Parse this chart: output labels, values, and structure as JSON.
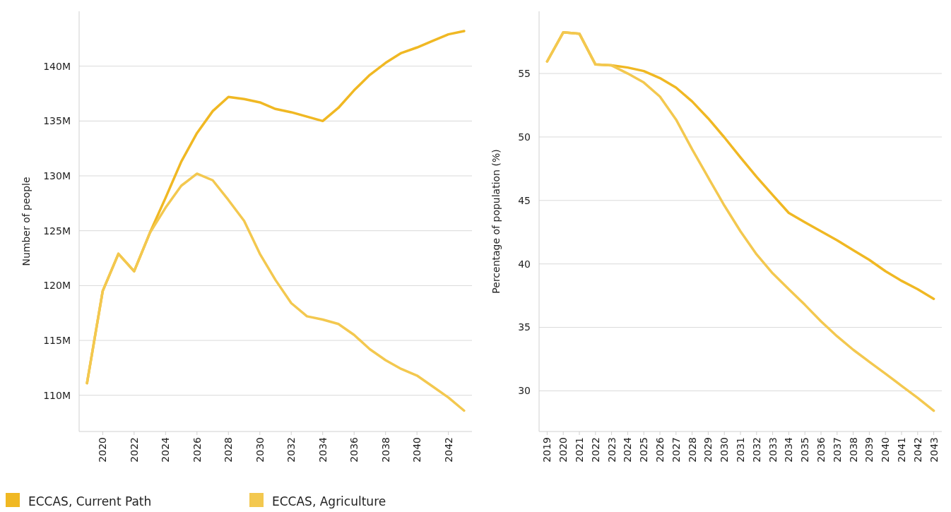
{
  "chart_data": [
    {
      "type": "line",
      "ylabel": "Number of people",
      "x": [
        2019,
        2020,
        2021,
        2022,
        2023,
        2024,
        2025,
        2026,
        2027,
        2028,
        2029,
        2030,
        2031,
        2032,
        2033,
        2034,
        2035,
        2036,
        2037,
        2038,
        2039,
        2040,
        2041,
        2042,
        2043
      ],
      "xlim": [
        2018.5,
        2043.5
      ],
      "xticks": [
        2020,
        2022,
        2024,
        2026,
        2028,
        2030,
        2032,
        2034,
        2036,
        2038,
        2040,
        2042
      ],
      "ylim": [
        106.7,
        145
      ],
      "yticks": [
        {
          "value": 110,
          "label": "110M"
        },
        {
          "value": 115,
          "label": "115M"
        },
        {
          "value": 120,
          "label": "120M"
        },
        {
          "value": 125,
          "label": "125M"
        },
        {
          "value": 130,
          "label": "130M"
        },
        {
          "value": 135,
          "label": "135M"
        },
        {
          "value": 140,
          "label": "140M"
        }
      ],
      "grid": "y",
      "legend": "bottom",
      "marker": "none",
      "line_style": "solid",
      "series": [
        {
          "name": "ECCAS, Current Path",
          "color": "#f0b823",
          "values": [
            111.1,
            119.5,
            122.9,
            121.3,
            124.8,
            128.0,
            131.3,
            133.9,
            135.9,
            137.2,
            137.0,
            136.7,
            136.1,
            135.8,
            135.4,
            135.0,
            136.2,
            137.8,
            139.2,
            140.3,
            141.2,
            141.7,
            142.3,
            142.9,
            143.2
          ]
        },
        {
          "name": "ECCAS, Agriculture",
          "color": "#f3c84f",
          "values": [
            111.1,
            119.5,
            122.9,
            121.3,
            124.8,
            127.1,
            129.1,
            130.2,
            129.6,
            127.8,
            125.9,
            122.9,
            120.5,
            118.4,
            117.2,
            116.9,
            116.5,
            115.5,
            114.2,
            113.2,
            112.4,
            111.8,
            110.8,
            109.8,
            108.6
          ]
        }
      ]
    },
    {
      "type": "line",
      "ylabel": "Percentage of population (%)",
      "x": [
        2019,
        2020,
        2021,
        2022,
        2023,
        2024,
        2025,
        2026,
        2027,
        2028,
        2029,
        2030,
        2031,
        2032,
        2033,
        2034,
        2035,
        2036,
        2037,
        2038,
        2039,
        2040,
        2041,
        2042,
        2043
      ],
      "xlim": [
        2018.5,
        2043.5
      ],
      "xticks": [
        2019,
        2020,
        2021,
        2022,
        2023,
        2024,
        2025,
        2026,
        2027,
        2028,
        2029,
        2030,
        2031,
        2032,
        2033,
        2034,
        2035,
        2036,
        2037,
        2038,
        2039,
        2040,
        2041,
        2042,
        2043
      ],
      "ylim": [
        26.8,
        59.9
      ],
      "yticks": [
        30,
        35,
        40,
        45,
        50,
        55
      ],
      "grid": "y",
      "marker": "none",
      "line_style": "solid",
      "series": [
        {
          "color": "#f0b823",
          "values": [
            55.95,
            58.24,
            58.14,
            55.71,
            55.64,
            55.47,
            55.19,
            54.64,
            53.89,
            52.8,
            51.46,
            49.97,
            48.39,
            46.86,
            45.43,
            44.02,
            43.28,
            42.57,
            41.86,
            41.08,
            40.32,
            39.43,
            38.67,
            38.01,
            37.25
          ]
        },
        {
          "color": "#f3c84f",
          "values": [
            55.95,
            58.24,
            58.14,
            55.71,
            55.64,
            55.0,
            54.29,
            53.18,
            51.38,
            49.03,
            46.8,
            44.6,
            42.57,
            40.75,
            39.26,
            38.01,
            36.78,
            35.48,
            34.3,
            33.24,
            32.29,
            31.35,
            30.4,
            29.45,
            28.43
          ]
        }
      ]
    }
  ]
}
